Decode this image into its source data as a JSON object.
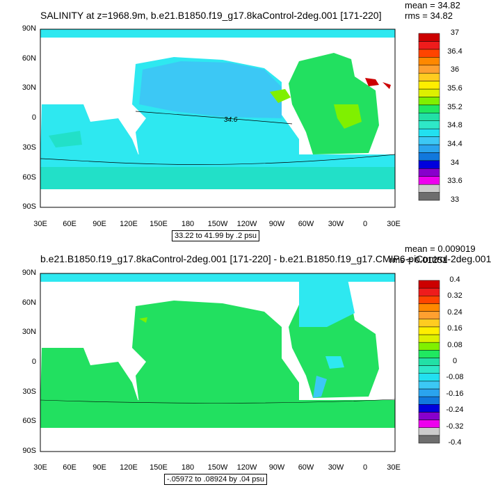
{
  "panels": [
    {
      "title": "SALINITY at z=1968.9m, b.e21.B1850.f19_g17.8kaControl-2deg.001 [171-220]",
      "mean": "mean = 34.82",
      "rms": "rms = 34.82",
      "range_label": "33.22 to 41.99 by .2 psu",
      "lat_labels": [
        "90N",
        "60N",
        "30N",
        "0",
        "30S",
        "60S",
        "90S"
      ],
      "lon_labels": [
        "30E",
        "60E",
        "90E",
        "120E",
        "150E",
        "180",
        "150W",
        "120W",
        "90W",
        "60W",
        "30W",
        "0",
        "30E"
      ],
      "contour_label": "34.6",
      "colorbar": {
        "colors": [
          "#6e6e6e",
          "#cccccc",
          "#ee00ee",
          "#8800cc",
          "#0000dd",
          "#1178dd",
          "#2aa4ee",
          "#3cc8f5",
          "#22e0f0",
          "#2ee8c8",
          "#22e0a6",
          "#20e860",
          "#80f000",
          "#ddf000",
          "#ffee00",
          "#ffcc20",
          "#ffa030",
          "#ff8800",
          "#ff4400",
          "#ee1c1c",
          "#cc0000"
        ],
        "labels": [
          "33",
          "33.6",
          "34",
          "34.4",
          "34.8",
          "35.2",
          "35.6",
          "36",
          "36.4",
          "37"
        ]
      }
    },
    {
      "title": "b.e21.B1850.f19_g17.8kaControl-2deg.001 [171-220] - b.e21.B1850.f19_g17.CMIP6-piControl-2deg.001",
      "mean": "mean = 0.009019",
      "rms": "rms = 0.01251",
      "range_label": "-.05972 to .08924 by .04 psu",
      "lat_labels": [
        "90N",
        "60N",
        "30N",
        "0",
        "30S",
        "60S",
        "90S"
      ],
      "lon_labels": [
        "30E",
        "60E",
        "90E",
        "120E",
        "150E",
        "180",
        "150W",
        "120W",
        "90W",
        "60W",
        "30W",
        "0",
        "30E"
      ],
      "colorbar": {
        "colors": [
          "#6e6e6e",
          "#cccccc",
          "#ee00ee",
          "#8800cc",
          "#0000dd",
          "#1178dd",
          "#2aa4ee",
          "#3cc8f5",
          "#22e0f0",
          "#2ee8c8",
          "#22e0a6",
          "#20e860",
          "#80f000",
          "#ddf000",
          "#ffee00",
          "#ffcc20",
          "#ffa030",
          "#ff8800",
          "#ff4400",
          "#ee1c1c",
          "#cc0000"
        ],
        "labels": [
          "-0.4",
          "-0.32",
          "-0.24",
          "-0.16",
          "-0.08",
          "0",
          "0.08",
          "0.16",
          "0.24",
          "0.32",
          "0.4"
        ]
      }
    }
  ],
  "colors": {
    "mid_ocean": "#2ee8f0",
    "pacific_fresh": "#3cc8f5",
    "atlantic_salty": "#22e060",
    "med_salty": "#80f000",
    "red_sea": "#cc0000",
    "diff_zero": "#22e060",
    "diff_neg": "#2ee8f0"
  }
}
